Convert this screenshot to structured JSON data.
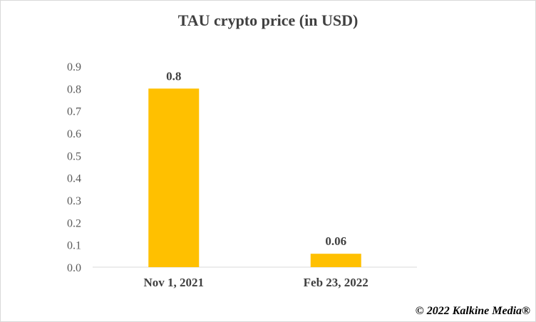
{
  "chart_data": {
    "type": "bar",
    "title": "TAU crypto price (in USD)",
    "categories": [
      "Nov 1, 2021",
      "Feb 23, 2022"
    ],
    "values": [
      0.8,
      0.06
    ],
    "data_labels": [
      "0.8",
      "0.06"
    ],
    "y_tick_labels": [
      "0.0",
      "0.1",
      "0.2",
      "0.3",
      "0.4",
      "0.5",
      "0.6",
      "0.7",
      "0.8",
      "0.9"
    ],
    "ylim": [
      0,
      0.9
    ],
    "xlabel": "",
    "ylabel": "",
    "grid": false,
    "legend": "none",
    "bar_color": "#FFC000"
  },
  "footer": {
    "copyright": "© 2022 Kalkine Media®"
  }
}
